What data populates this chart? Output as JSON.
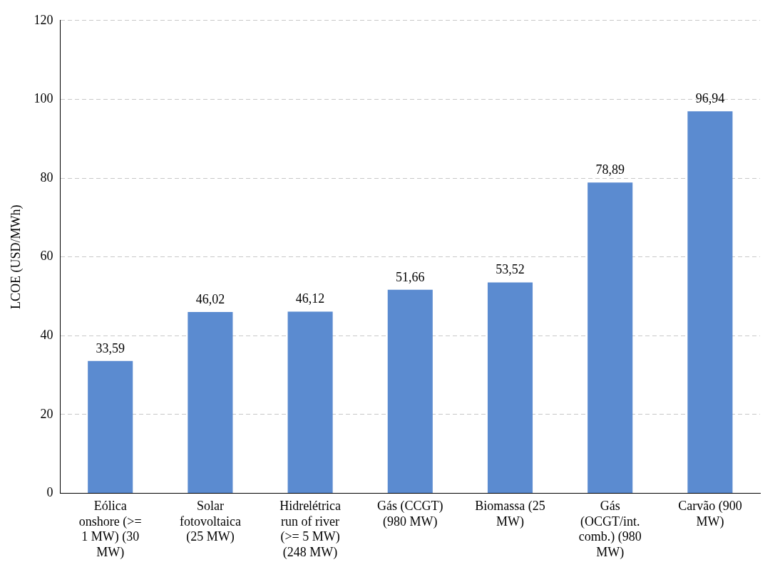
{
  "chart_data": {
    "type": "bar",
    "ylabel": "LCOE (USD/MWh)",
    "categories": [
      "Eólica onshore (>= 1 MW) (30 MW)",
      "Solar fotovoltaica (25 MW)",
      "Hidrelétrica run of river (>= 5 MW) (248 MW)",
      "Gás (CCGT) (980 MW)",
      "Biomassa (25 MW)",
      "Gás (OCGT/int. comb.) (980 MW)",
      "Carvão (900 MW)"
    ],
    "values": [
      33.59,
      46.02,
      46.12,
      51.66,
      53.52,
      78.89,
      96.94
    ],
    "value_labels": [
      "33,59",
      "46,02",
      "46,12",
      "51,66",
      "53,52",
      "78,89",
      "96,94"
    ],
    "color": "#5b8bd0",
    "ylim": [
      0,
      120
    ],
    "yticks": [
      0,
      20,
      40,
      60,
      80,
      100,
      120
    ],
    "grid": "y",
    "legend": false
  }
}
